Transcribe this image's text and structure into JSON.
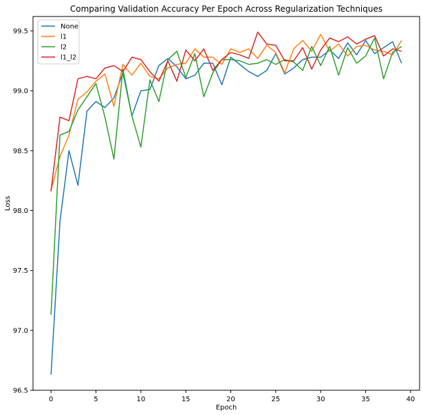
{
  "chart_data": {
    "type": "line",
    "title": "Comparing Validation Accuracy Per Epoch Across Regularization Techniques",
    "xlabel": "Epoch",
    "ylabel": "Loss",
    "xlim": [
      -2,
      41
    ],
    "ylim": [
      96.5,
      99.62
    ],
    "xticks": [
      0,
      5,
      10,
      15,
      20,
      25,
      30,
      35,
      40
    ],
    "yticks": [
      96.5,
      97.0,
      97.5,
      98.0,
      98.5,
      99.0,
      99.5
    ],
    "ytick_labels": [
      "96.5",
      "97.0",
      "97.5",
      "98.0",
      "98.5",
      "99.0",
      "99.5"
    ],
    "grid": false,
    "legend_position": "top-left",
    "x": [
      0,
      1,
      2,
      3,
      4,
      5,
      6,
      7,
      8,
      9,
      10,
      11,
      12,
      13,
      14,
      15,
      16,
      17,
      18,
      19,
      20,
      21,
      22,
      23,
      24,
      25,
      26,
      27,
      28,
      29,
      30,
      31,
      32,
      33,
      34,
      35,
      36,
      37,
      38,
      39
    ],
    "series": [
      {
        "name": "None",
        "color": "#1f77b4",
        "values": [
          96.63,
          97.91,
          98.5,
          98.21,
          98.83,
          98.91,
          98.86,
          98.94,
          99.15,
          98.79,
          99.0,
          99.01,
          99.21,
          99.27,
          99.2,
          99.1,
          99.13,
          99.23,
          99.23,
          99.05,
          99.28,
          99.22,
          99.16,
          99.12,
          99.17,
          99.31,
          99.14,
          99.19,
          99.26,
          99.28,
          99.28,
          99.34,
          99.27,
          99.4,
          99.3,
          99.42,
          99.31,
          99.36,
          99.41,
          99.23
        ]
      },
      {
        "name": "l1",
        "color": "#ff7f0e",
        "values": [
          98.17,
          98.45,
          98.63,
          98.93,
          98.99,
          99.08,
          99.14,
          98.87,
          99.22,
          99.13,
          99.23,
          99.12,
          99.1,
          99.19,
          99.22,
          99.23,
          99.35,
          99.28,
          99.28,
          99.22,
          99.35,
          99.32,
          99.35,
          99.27,
          99.38,
          99.32,
          99.15,
          99.35,
          99.42,
          99.33,
          99.47,
          99.33,
          99.39,
          99.29,
          99.37,
          99.38,
          99.34,
          99.33,
          99.3,
          99.42
        ]
      },
      {
        "name": "l2",
        "color": "#2ca02c",
        "values": [
          97.13,
          98.63,
          98.66,
          98.84,
          98.95,
          99.06,
          98.78,
          98.43,
          99.18,
          98.79,
          98.53,
          99.09,
          98.91,
          99.26,
          99.33,
          99.11,
          99.31,
          98.95,
          99.15,
          99.26,
          99.26,
          99.25,
          99.22,
          99.23,
          99.26,
          99.22,
          99.26,
          99.24,
          99.17,
          99.37,
          99.21,
          99.37,
          99.13,
          99.36,
          99.23,
          99.29,
          99.44,
          99.1,
          99.32,
          99.37
        ]
      },
      {
        "name": "l1_l2",
        "color": "#d62728",
        "values": [
          98.16,
          98.78,
          98.75,
          99.1,
          99.12,
          99.1,
          99.19,
          99.21,
          99.16,
          99.28,
          99.26,
          99.16,
          99.08,
          99.25,
          99.08,
          99.34,
          99.25,
          99.35,
          99.17,
          99.26,
          99.32,
          99.3,
          99.27,
          99.49,
          99.39,
          99.38,
          99.25,
          99.25,
          99.36,
          99.18,
          99.34,
          99.44,
          99.41,
          99.45,
          99.39,
          99.43,
          99.46,
          99.29,
          99.35,
          99.33
        ]
      }
    ]
  }
}
